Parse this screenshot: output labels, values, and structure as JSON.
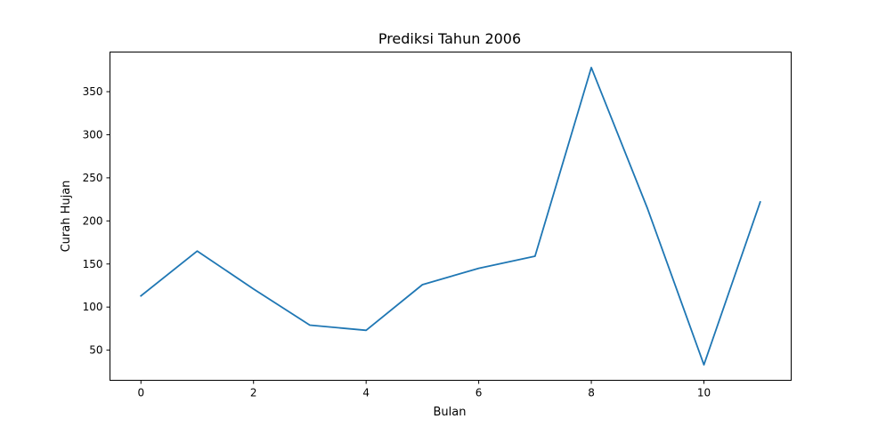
{
  "chart_data": {
    "type": "line",
    "title": "Prediksi Tahun 2006",
    "xlabel": "Bulan",
    "ylabel": "Curah Hujan",
    "x": [
      0,
      1,
      2,
      3,
      4,
      5,
      6,
      7,
      8,
      9,
      10,
      11
    ],
    "series": [
      {
        "values": [
          113,
          165,
          121,
          79,
          73,
          126,
          145,
          159,
          378,
          214,
          33,
          222
        ],
        "color": "#1f77b4"
      }
    ],
    "xticks": [
      "0",
      "2",
      "4",
      "6",
      "8",
      "10"
    ],
    "yticks": [
      "50",
      "100",
      "150",
      "200",
      "250",
      "300",
      "350"
    ],
    "xlim": [
      -0.55,
      11.55
    ],
    "ylim": [
      15,
      396
    ],
    "grid": false,
    "legend": "none"
  }
}
